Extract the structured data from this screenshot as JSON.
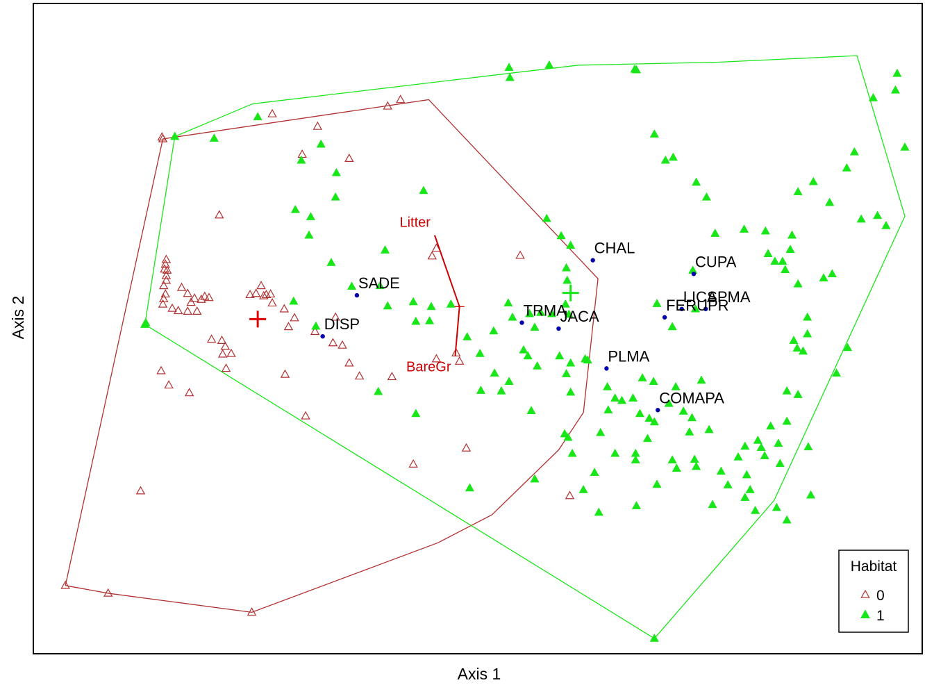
{
  "chart_data": {
    "type": "scatter",
    "xlabel": "Axis 1",
    "ylabel": "Axis 2",
    "xlim": [
      0,
      100
    ],
    "ylim": [
      0,
      100
    ],
    "grid": false,
    "legend": {
      "title": "Habitat",
      "placement": "bottom-right",
      "entries": [
        {
          "label": "0",
          "marker": "open-triangle",
          "color": "#b03030"
        },
        {
          "label": "1",
          "marker": "filled-triangle",
          "color": "#19e619"
        }
      ]
    },
    "colors": {
      "group0": "#b03030",
      "group1": "#19e619",
      "species": "#0000aa",
      "env": "#cc0000",
      "centroid0": "#e00000",
      "centroid1": "#19e619"
    },
    "series": [
      {
        "name": "0",
        "points": [
          [
            1.8,
            8.9
          ],
          [
            6.8,
            7.6
          ],
          [
            23.6,
            4.4
          ],
          [
            41.0,
            90.6
          ],
          [
            13.2,
            84.0
          ],
          [
            13.1,
            84.3
          ],
          [
            10.6,
            24.8
          ],
          [
            42.5,
            29.3
          ],
          [
            40.0,
            44.0
          ],
          [
            29.9,
            37.4
          ],
          [
            55.0,
            64.4
          ],
          [
            60.8,
            24.0
          ],
          [
            47.5,
            48.0
          ],
          [
            34.2,
            49.3
          ],
          [
            26.0,
            88.2
          ],
          [
            31.3,
            86.1
          ],
          [
            29.5,
            81.4
          ],
          [
            19.8,
            71.2
          ],
          [
            39.5,
            89.5
          ],
          [
            35.0,
            80.7
          ],
          [
            45.2,
            65.6
          ],
          [
            44.7,
            64.3
          ],
          [
            13.6,
            63.7
          ],
          [
            13.5,
            62.9
          ],
          [
            13.4,
            62.1
          ],
          [
            13.7,
            61.9
          ],
          [
            13.6,
            61.0
          ],
          [
            13.6,
            60.2
          ],
          [
            13.3,
            59.3
          ],
          [
            13.5,
            57.9
          ],
          [
            13.3,
            57.1
          ],
          [
            13.2,
            56.2
          ],
          [
            14.3,
            55.5
          ],
          [
            15.0,
            55.1
          ],
          [
            16.1,
            55.0
          ],
          [
            17.2,
            55.0
          ],
          [
            17.7,
            57.0
          ],
          [
            18.1,
            57.5
          ],
          [
            18.6,
            57.3
          ],
          [
            15.4,
            59.0
          ],
          [
            16.1,
            58.0
          ],
          [
            16.5,
            56.5
          ],
          [
            16.9,
            57.2
          ],
          [
            23.4,
            57.8
          ],
          [
            24.1,
            58.0
          ],
          [
            24.7,
            59.3
          ],
          [
            25.0,
            57.6
          ],
          [
            25.3,
            57.8
          ],
          [
            25.8,
            57.9
          ],
          [
            26.0,
            56.4
          ],
          [
            27.4,
            55.4
          ],
          [
            28.6,
            53.9
          ],
          [
            27.9,
            52.4
          ],
          [
            31.0,
            51.6
          ],
          [
            33.4,
            54.0
          ],
          [
            18.9,
            50.3
          ],
          [
            20.1,
            50.1
          ],
          [
            20.5,
            49.1
          ],
          [
            20.2,
            47.8
          ],
          [
            21.2,
            47.9
          ],
          [
            20.6,
            45.4
          ],
          [
            13.0,
            45.0
          ],
          [
            13.9,
            42.6
          ],
          [
            16.3,
            41.3
          ],
          [
            27.5,
            44.4
          ],
          [
            33.1,
            49.7
          ],
          [
            35.0,
            46.3
          ],
          [
            36.2,
            44.1
          ],
          [
            47.9,
            46.6
          ],
          [
            45.2,
            47.0
          ],
          [
            48.7,
            32.0
          ]
        ]
      },
      {
        "name": "1",
        "points": [
          [
            11.2,
            53.1
          ],
          [
            11.1,
            52.8
          ],
          [
            14.6,
            84.4
          ],
          [
            19.2,
            84.1
          ],
          [
            24.3,
            87.7
          ],
          [
            31.7,
            83.1
          ],
          [
            29.4,
            80.4
          ],
          [
            33.5,
            78.3
          ],
          [
            33.4,
            74.2
          ],
          [
            28.7,
            72.1
          ],
          [
            30.5,
            70.9
          ],
          [
            30.3,
            67.8
          ],
          [
            32.9,
            63.2
          ],
          [
            35.3,
            59.2
          ],
          [
            28.5,
            56.7
          ],
          [
            31.1,
            52.5
          ],
          [
            39.2,
            65.3
          ],
          [
            38.6,
            59.3
          ],
          [
            39.5,
            55.9
          ],
          [
            43.7,
            75.3
          ],
          [
            42.5,
            56.6
          ],
          [
            42.8,
            53.3
          ],
          [
            44.6,
            55.8
          ],
          [
            44.4,
            53.4
          ],
          [
            46.9,
            56.2
          ],
          [
            48.8,
            50.7
          ],
          [
            53.6,
            56.4
          ],
          [
            54.1,
            54.0
          ],
          [
            56.1,
            54.6
          ],
          [
            50.3,
            47.9
          ],
          [
            51.9,
            51.7
          ],
          [
            55.4,
            48.5
          ],
          [
            38.4,
            41.5
          ],
          [
            42.8,
            37.8
          ],
          [
            50.4,
            41.7
          ],
          [
            52.0,
            44.6
          ],
          [
            57.4,
            54.8
          ],
          [
            56.7,
            52.3
          ],
          [
            58.7,
            54.6
          ],
          [
            60.7,
            54.5
          ],
          [
            59.6,
            47.5
          ],
          [
            62.6,
            47.0
          ],
          [
            60.4,
            62.3
          ],
          [
            58.1,
            70.6
          ],
          [
            59.8,
            67.7
          ],
          [
            60.9,
            66.1
          ],
          [
            60.5,
            60.2
          ],
          [
            60.3,
            56.2
          ],
          [
            57.0,
            45.8
          ],
          [
            60.9,
            41.4
          ],
          [
            60.6,
            33.8
          ],
          [
            61.1,
            31.1
          ],
          [
            65.2,
            42.3
          ],
          [
            62.9,
            46.8
          ],
          [
            53.7,
            96.0
          ],
          [
            53.8,
            94.3
          ],
          [
            68.6,
            95.6
          ],
          [
            70.7,
            84.8
          ],
          [
            72.0,
            80.4
          ],
          [
            72.9,
            80.9
          ],
          [
            75.6,
            76.7
          ],
          [
            76.8,
            74.2
          ],
          [
            77.8,
            68.1
          ],
          [
            81.2,
            68.8
          ],
          [
            83.7,
            68.5
          ],
          [
            86.6,
            65.4
          ],
          [
            84.8,
            63.4
          ],
          [
            85.7,
            63.4
          ],
          [
            86.0,
            62.0
          ],
          [
            87.5,
            59.6
          ],
          [
            90.5,
            60.6
          ],
          [
            91.5,
            61.3
          ],
          [
            94.9,
            70.5
          ],
          [
            96.8,
            71.1
          ],
          [
            97.8,
            69.4
          ],
          [
            84.0,
            64.7
          ],
          [
            86.8,
            67.8
          ],
          [
            87.5,
            75.1
          ],
          [
            89.3,
            76.8
          ],
          [
            91.2,
            73.3
          ],
          [
            93.2,
            79.1
          ],
          [
            94.1,
            81.8
          ],
          [
            96.3,
            90.9
          ],
          [
            99.1,
            95.0
          ],
          [
            98.9,
            92.2
          ],
          [
            100.0,
            82.6
          ],
          [
            75.2,
            61.9
          ],
          [
            75.5,
            55.4
          ],
          [
            72.8,
            52.4
          ],
          [
            71.0,
            56.3
          ],
          [
            70.6,
            43.2
          ],
          [
            72.4,
            39.5
          ],
          [
            75.1,
            37.1
          ],
          [
            75.4,
            30.1
          ],
          [
            78.5,
            28.1
          ],
          [
            80.5,
            30.5
          ],
          [
            81.9,
            25.0
          ],
          [
            83.2,
            32.1
          ],
          [
            83.6,
            30.7
          ],
          [
            85.4,
            29.4
          ],
          [
            85.2,
            32.8
          ],
          [
            86.2,
            36.5
          ],
          [
            86.2,
            41.6
          ],
          [
            87.4,
            48.8
          ],
          [
            88.6,
            51.2
          ],
          [
            88.6,
            54.0
          ],
          [
            93.3,
            48.9
          ],
          [
            69.3,
            43.8
          ],
          [
            70.1,
            37.0
          ],
          [
            70.7,
            36.4
          ],
          [
            68.5,
            31.1
          ],
          [
            68.5,
            30.0
          ],
          [
            66.1,
            31.1
          ],
          [
            64.4,
            34.6
          ],
          [
            65.3,
            38.4
          ],
          [
            66.1,
            40.4
          ],
          [
            66.9,
            40.0
          ],
          [
            68.2,
            40.4
          ],
          [
            69.0,
            37.8
          ],
          [
            69.9,
            33.6
          ],
          [
            72.8,
            30.0
          ],
          [
            73.3,
            28.6
          ],
          [
            71.0,
            25.9
          ],
          [
            79.3,
            25.8
          ],
          [
            81.5,
            27.5
          ],
          [
            81.3,
            32.3
          ],
          [
            82.8,
            33.3
          ],
          [
            84.3,
            35.7
          ],
          [
            88.7,
            32.2
          ],
          [
            87.5,
            41.0
          ],
          [
            92.0,
            44.6
          ],
          [
            88.1,
            48.3
          ],
          [
            87.0,
            50.1
          ],
          [
            68.4,
            95.7
          ],
          [
            56.3,
            38.3
          ],
          [
            76.2,
            43.4
          ],
          [
            73.2,
            42.3
          ],
          [
            74.1,
            38.2
          ],
          [
            74.8,
            34.7
          ],
          [
            77.1,
            35.1
          ],
          [
            60.2,
            34.4
          ],
          [
            60.4,
            44.5
          ],
          [
            60.9,
            46.3
          ],
          [
            55.9,
            47.5
          ],
          [
            53.7,
            43.2
          ],
          [
            52.8,
            41.6
          ],
          [
            49.1,
            25.3
          ],
          [
            56.7,
            26.8
          ],
          [
            63.7,
            27.9
          ],
          [
            62.4,
            25.0
          ],
          [
            64.2,
            21.2
          ],
          [
            68.6,
            22.3
          ],
          [
            75.6,
            28.9
          ],
          [
            77.5,
            22.5
          ],
          [
            81.3,
            23.7
          ],
          [
            82.5,
            21.5
          ],
          [
            85.0,
            22.0
          ],
          [
            89.0,
            24.1
          ],
          [
            86.2,
            19.9
          ],
          [
            70.7,
            0.0
          ],
          [
            58.4,
            96.4
          ]
        ]
      }
    ],
    "hulls": [
      {
        "name": "0",
        "points": [
          [
            1.8,
            8.9
          ],
          [
            13.2,
            84.0
          ],
          [
            44.3,
            90.6
          ],
          [
            64.1,
            60.5
          ],
          [
            62.4,
            38.0
          ],
          [
            59.5,
            31.7
          ],
          [
            51.7,
            20.8
          ],
          [
            45.4,
            16.1
          ],
          [
            23.6,
            4.4
          ],
          [
            6.8,
            7.6
          ],
          [
            1.8,
            8.9
          ]
        ]
      },
      {
        "name": "1",
        "points": [
          [
            11.1,
            52.8
          ],
          [
            14.6,
            84.4
          ],
          [
            23.7,
            89.9
          ],
          [
            61.8,
            96.4
          ],
          [
            78.2,
            96.9
          ],
          [
            94.4,
            98.0
          ],
          [
            100.0,
            71.0
          ],
          [
            84.7,
            23.2
          ],
          [
            70.7,
            0.0
          ],
          [
            11.1,
            52.8
          ]
        ]
      }
    ],
    "centroids": [
      {
        "name": "0",
        "x": 24.3,
        "y": 53.7
      },
      {
        "name": "1",
        "x": 60.9,
        "y": 58.1
      }
    ],
    "species": [
      {
        "label": "CHAL",
        "x": 63.5,
        "y": 63.6
      },
      {
        "label": "CUPA",
        "x": 75.3,
        "y": 61.3
      },
      {
        "label": "SADE",
        "x": 35.9,
        "y": 57.7
      },
      {
        "label": "LICA",
        "x": 73.9,
        "y": 55.4
      },
      {
        "label": "SPMA",
        "x": 76.7,
        "y": 55.4
      },
      {
        "label": "TRMA",
        "x": 55.2,
        "y": 53.1
      },
      {
        "label": "DISP",
        "x": 31.9,
        "y": 50.8
      },
      {
        "label": "JACA",
        "x": 59.5,
        "y": 52.1
      },
      {
        "label": "FERUPR",
        "x": 71.9,
        "y": 54.0
      },
      {
        "label": "PLMA",
        "x": 65.1,
        "y": 45.4
      },
      {
        "label": "COMAPA",
        "x": 71.1,
        "y": 38.4
      }
    ],
    "env_vectors": [
      {
        "label": "Litter",
        "x0": 45.0,
        "y0": 67.8,
        "x1": 47.9,
        "y1": 55.8
      },
      {
        "label": "BareGr",
        "x0": 47.4,
        "y0": 47.5,
        "x1": 47.9,
        "y1": 55.8
      }
    ]
  }
}
